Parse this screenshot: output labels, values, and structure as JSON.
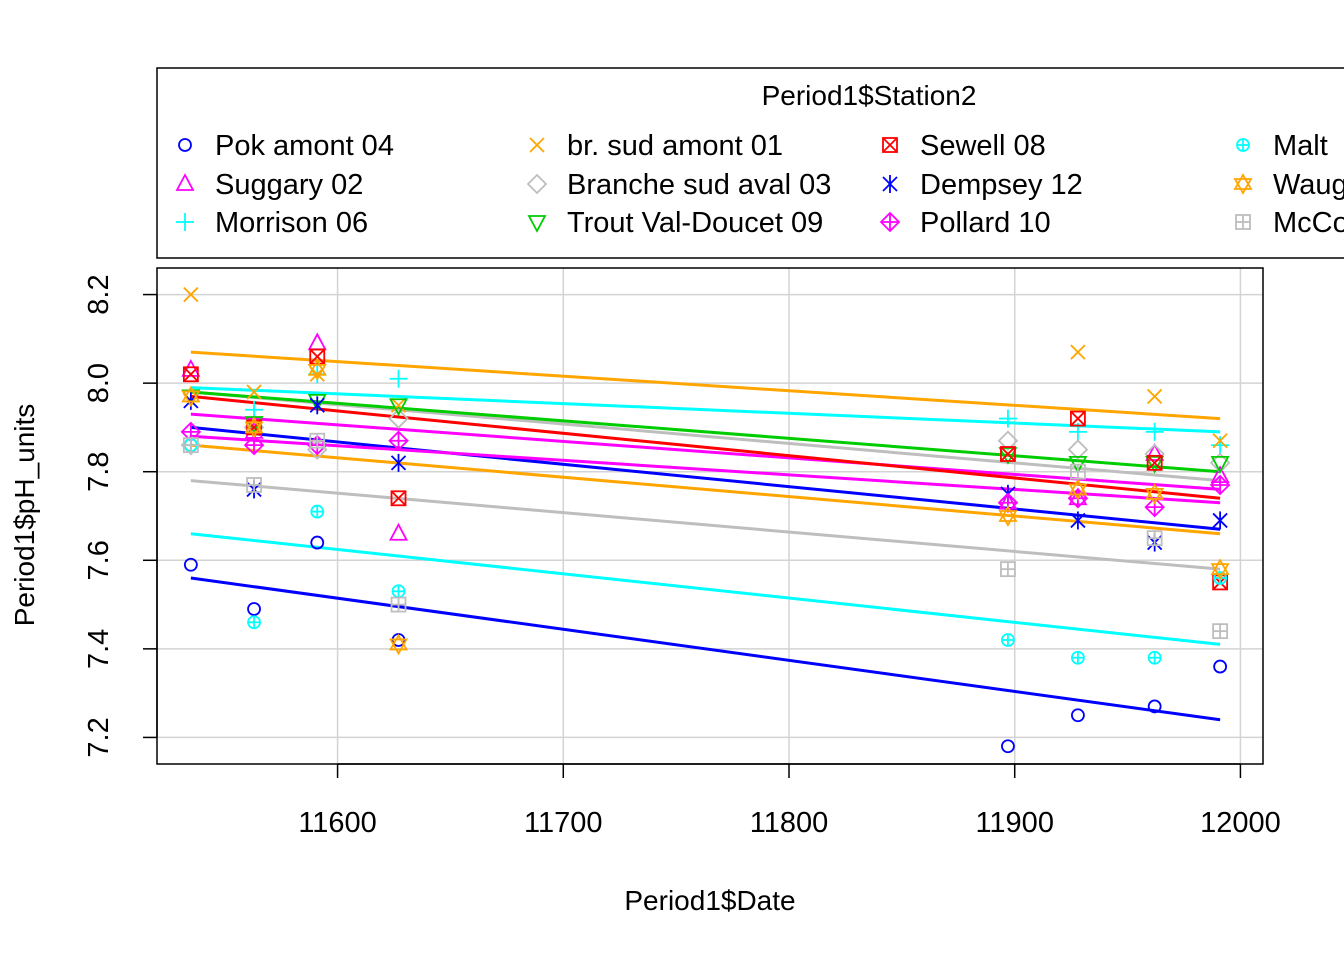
{
  "chart_data": {
    "type": "scatter",
    "title": "",
    "xlabel": "Period1$Date",
    "ylabel": "Period1$pH_units",
    "xlim": [
      11520,
      12010
    ],
    "ylim": [
      7.14,
      8.26
    ],
    "x_ticks": [
      11600,
      11700,
      11800,
      11900,
      12000
    ],
    "x_tick_labels": [
      "11600",
      "11700",
      "11800",
      "11900",
      "12000"
    ],
    "y_ticks": [
      7.2,
      7.4,
      7.6,
      7.8,
      8.0,
      8.2
    ],
    "y_tick_labels": [
      "7.2",
      "7.4",
      "7.6",
      "7.8",
      "8.0",
      "8.2"
    ],
    "grid": true,
    "legend": {
      "title": "Period1$Station2",
      "placement": "top (above plot, clipped at right)",
      "columns": 4
    },
    "series": [
      {
        "name": "Pok amont 04",
        "color": "#0000FF",
        "marker": "circle",
        "x": [
          11535,
          11563,
          11591,
          11627,
          11897,
          11928,
          11962,
          11991
        ],
        "y": [
          7.59,
          7.49,
          7.64,
          7.42,
          7.18,
          7.25,
          7.27,
          7.36
        ],
        "fit": {
          "x": [
            11535,
            11991
          ],
          "y": [
            7.56,
            7.24
          ]
        }
      },
      {
        "name": "Suggary 02",
        "color": "#FF00FF",
        "marker": "triangle-up",
        "x": [
          11535,
          11563,
          11591,
          11627,
          11897,
          11928,
          11962,
          11991
        ],
        "y": [
          8.03,
          7.89,
          8.09,
          7.66,
          7.73,
          7.74,
          7.84,
          7.79
        ],
        "fit": {
          "x": [
            11535,
            11991
          ],
          "y": [
            7.93,
            7.76
          ]
        }
      },
      {
        "name": "Morrison 06",
        "color": "#00FFFF",
        "marker": "plus",
        "x": [
          11535,
          11563,
          11591,
          11627,
          11897,
          11928,
          11962,
          11991
        ],
        "y": [
          7.86,
          7.94,
          8.02,
          8.01,
          7.92,
          7.89,
          7.89,
          7.86
        ],
        "fit": {
          "x": [
            11535,
            11991
          ],
          "y": [
            7.99,
            7.89
          ]
        }
      },
      {
        "name": "br. sud amont 01",
        "color": "#FFA500",
        "marker": "cross",
        "x": [
          11535,
          11563,
          11591,
          11627,
          11897,
          11928,
          11962,
          11991
        ],
        "y": [
          8.2,
          7.98,
          8.02,
          7.95,
          7.84,
          8.07,
          7.97,
          7.87
        ],
        "fit": {
          "x": [
            11535,
            11991
          ],
          "y": [
            8.07,
            7.92
          ]
        }
      },
      {
        "name": "Branche sud aval 03",
        "color": "#BEBEBE",
        "marker": "diamond",
        "x": [
          11535,
          11563,
          11591,
          11627,
          11897,
          11928,
          11962,
          11991
        ],
        "y": [
          7.86,
          7.9,
          7.85,
          7.92,
          7.87,
          7.85,
          7.84,
          7.82
        ],
        "fit": {
          "x": [
            11535,
            11991
          ],
          "y": [
            7.98,
            7.78
          ]
        }
      },
      {
        "name": "Trout Val-Doucet 09",
        "color": "#00CD00",
        "marker": "triangle-down",
        "x": [
          11535,
          11563,
          11591,
          11627,
          11897,
          11928,
          11962,
          11991
        ],
        "y": [
          7.97,
          7.91,
          7.96,
          7.95,
          7.84,
          7.82,
          7.82,
          7.82
        ],
        "fit": {
          "x": [
            11535,
            11991
          ],
          "y": [
            7.98,
            7.8
          ]
        }
      },
      {
        "name": "Sewell 08",
        "color": "#FF0000",
        "marker": "square-cross",
        "x": [
          11535,
          11563,
          11591,
          11627,
          11897,
          11928,
          11962,
          11991
        ],
        "y": [
          8.02,
          7.9,
          8.06,
          7.74,
          7.84,
          7.92,
          7.82,
          7.55
        ],
        "fit": {
          "x": [
            11535,
            11991
          ],
          "y": [
            7.97,
            7.74
          ]
        }
      },
      {
        "name": "Dempsey 12",
        "color": "#0000FF",
        "marker": "asterisk",
        "x": [
          11535,
          11563,
          11591,
          11627,
          11897,
          11928,
          11962,
          11991
        ],
        "y": [
          7.96,
          7.76,
          7.95,
          7.82,
          7.75,
          7.69,
          7.64,
          7.69
        ],
        "fit": {
          "x": [
            11535,
            11991
          ],
          "y": [
            7.9,
            7.67
          ]
        }
      },
      {
        "name": "Pollard 10",
        "color": "#FF00FF",
        "marker": "diamond-plus",
        "x": [
          11535,
          11563,
          11591,
          11627,
          11897,
          11928,
          11962,
          11991
        ],
        "y": [
          7.89,
          7.86,
          7.86,
          7.87,
          7.73,
          7.74,
          7.72,
          7.77
        ],
        "fit": {
          "x": [
            11535,
            11991
          ],
          "y": [
            7.88,
            7.73
          ]
        }
      },
      {
        "name": "Malt",
        "color": "#00FFFF",
        "marker": "circle-plus",
        "x": [
          11535,
          11563,
          11591,
          11627,
          11897,
          11928,
          11962,
          11991
        ],
        "y": [
          7.86,
          7.46,
          7.71,
          7.53,
          7.42,
          7.38,
          7.38,
          7.56
        ],
        "fit": {
          "x": [
            11535,
            11991
          ],
          "y": [
            7.66,
            7.41
          ]
        }
      },
      {
        "name": "Waug",
        "color": "#FFA500",
        "marker": "star-of-david",
        "x": [
          11535,
          11563,
          11591,
          11627,
          11897,
          11928,
          11962,
          11991
        ],
        "y": [
          7.97,
          7.9,
          8.03,
          7.41,
          7.7,
          7.76,
          7.75,
          7.58
        ],
        "fit": {
          "x": [
            11535,
            11991
          ],
          "y": [
            7.86,
            7.66
          ]
        }
      },
      {
        "name": "McCo",
        "color": "#BEBEBE",
        "marker": "square-plus",
        "x": [
          11535,
          11563,
          11591,
          11627,
          11897,
          11928,
          11962,
          11991
        ],
        "y": [
          7.86,
          7.77,
          7.87,
          7.5,
          7.58,
          7.8,
          7.65,
          7.44
        ],
        "fit": {
          "x": [
            11535,
            11991
          ],
          "y": [
            7.78,
            7.58
          ]
        }
      }
    ]
  }
}
